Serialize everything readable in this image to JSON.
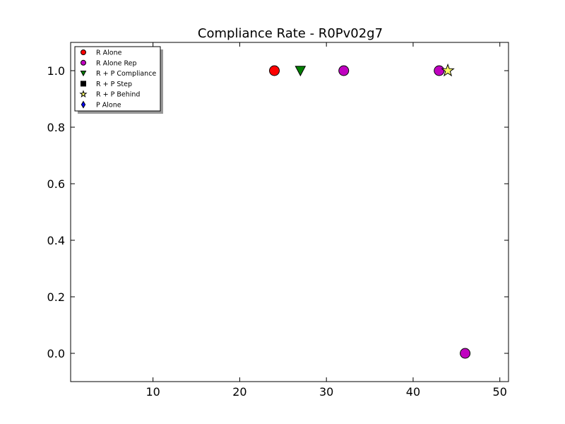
{
  "chart_data": {
    "type": "scatter",
    "title": "Compliance Rate  - R0Pv02g7",
    "xlabel": "",
    "ylabel": "",
    "xlim": [
      0.5,
      51.0
    ],
    "ylim": [
      -0.1,
      1.1
    ],
    "xticks": [
      10,
      20,
      30,
      40,
      50
    ],
    "yticks": [
      0.0,
      0.2,
      0.4,
      0.6,
      0.8,
      1.0
    ],
    "xtick_labels": [
      "10",
      "20",
      "30",
      "40",
      "50"
    ],
    "ytick_labels": [
      "0.0",
      "0.2",
      "0.4",
      "0.6",
      "0.8",
      "1.0"
    ],
    "grid": false,
    "legend_position": "top-left",
    "series": [
      {
        "name": "R Alone",
        "marker": "circle",
        "color": "#ff0000",
        "points": [
          {
            "x": 24,
            "y": 1.0
          }
        ]
      },
      {
        "name": "R Alone Rep",
        "marker": "circle",
        "color": "#c000c0",
        "points": [
          {
            "x": 32,
            "y": 1.0
          },
          {
            "x": 43,
            "y": 1.0
          },
          {
            "x": 46,
            "y": 0.0
          }
        ]
      },
      {
        "name": "R + P Compliance",
        "marker": "triangle-down",
        "color": "#008000",
        "points": [
          {
            "x": 27,
            "y": 1.0
          }
        ]
      },
      {
        "name": "R + P Step",
        "marker": "square",
        "color": "#000000",
        "points": []
      },
      {
        "name": "R + P Behind",
        "marker": "star",
        "color": "#ffff66",
        "points": [
          {
            "x": 44,
            "y": 1.0
          }
        ]
      },
      {
        "name": "P Alone",
        "marker": "diamond",
        "color": "#0000ff",
        "points": []
      }
    ]
  }
}
